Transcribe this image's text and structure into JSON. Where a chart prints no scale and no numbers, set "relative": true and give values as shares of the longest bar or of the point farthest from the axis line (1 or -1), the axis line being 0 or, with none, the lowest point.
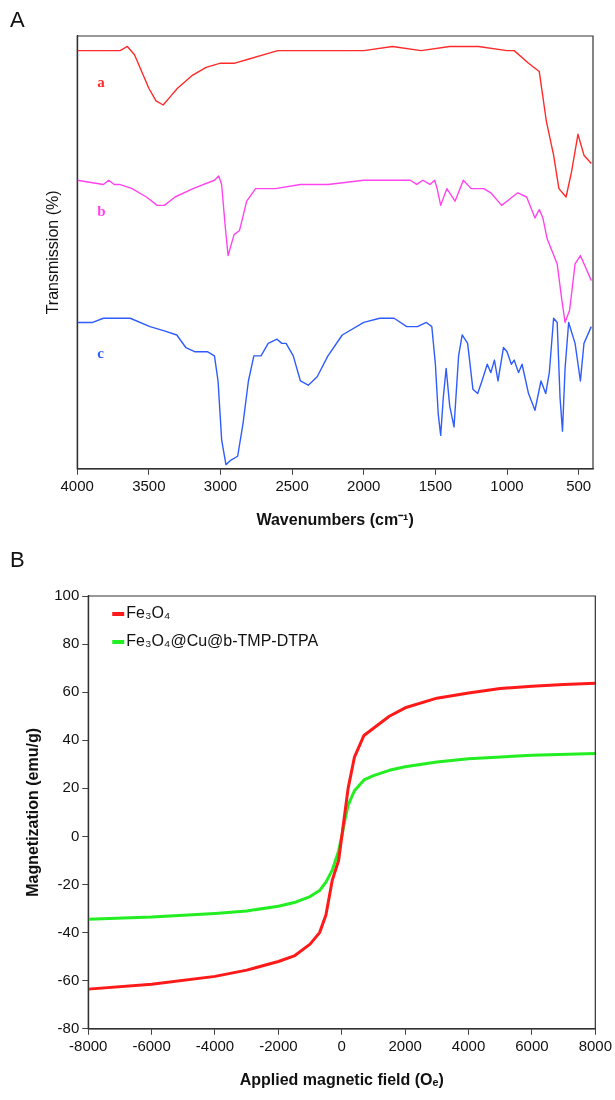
{
  "chart_data": [
    {
      "type": "line",
      "relative": true,
      "annotations": [
        "A"
      ],
      "xlabel": "Wavenumbers (cm⁻¹)",
      "ylabel": "Transmission (%)",
      "xlim": [
        4000,
        400
      ],
      "xticks": [
        4000,
        3500,
        3000,
        2500,
        2000,
        1500,
        1000,
        500
      ],
      "grid": false,
      "legend": false,
      "tick_labels": "x",
      "series": [
        {
          "name": "a",
          "color": "#ff2a2a",
          "x": [
            4000,
            3800,
            3700,
            3650,
            3600,
            3550,
            3500,
            3450,
            3400,
            3350,
            3300,
            3200,
            3100,
            3000,
            2900,
            2800,
            2600,
            2400,
            2200,
            2000,
            1800,
            1600,
            1400,
            1200,
            1000,
            950,
            850,
            775,
            725,
            675,
            638,
            588,
            550,
            505,
            463,
            412
          ],
          "values": [
            0.99,
            0.99,
            0.99,
            1.0,
            0.98,
            0.94,
            0.9,
            0.87,
            0.86,
            0.88,
            0.9,
            0.93,
            0.95,
            0.96,
            0.96,
            0.97,
            0.99,
            0.99,
            0.99,
            0.99,
            1.0,
            0.99,
            1.0,
            1.0,
            0.99,
            0.99,
            0.96,
            0.94,
            0.82,
            0.74,
            0.66,
            0.64,
            0.7,
            0.79,
            0.74,
            0.72
          ]
        },
        {
          "name": "b",
          "color": "#ff44ee",
          "x": [
            4000,
            3817,
            3780,
            3742,
            3705,
            3617,
            3517,
            3442,
            3392,
            3317,
            3192,
            3042,
            3012,
            2992,
            2967,
            2947,
            2930,
            2905,
            2867,
            2817,
            2755,
            2617,
            2442,
            2250,
            2000,
            1800,
            1675,
            1630,
            1588,
            1538,
            1505,
            1488,
            1463,
            1420,
            1363,
            1305,
            1250,
            1163,
            1113,
            1038,
            925,
            863,
            805,
            775,
            750,
            720,
            650,
            620,
            595,
            563,
            525,
            488,
            450,
            412
          ],
          "values": [
            0.68,
            0.67,
            0.68,
            0.67,
            0.67,
            0.66,
            0.64,
            0.62,
            0.62,
            0.64,
            0.66,
            0.68,
            0.69,
            0.67,
            0.57,
            0.5,
            0.52,
            0.55,
            0.56,
            0.63,
            0.66,
            0.66,
            0.67,
            0.67,
            0.68,
            0.68,
            0.68,
            0.67,
            0.68,
            0.67,
            0.68,
            0.66,
            0.62,
            0.66,
            0.63,
            0.68,
            0.66,
            0.66,
            0.65,
            0.62,
            0.65,
            0.64,
            0.59,
            0.61,
            0.59,
            0.54,
            0.48,
            0.4,
            0.34,
            0.37,
            0.48,
            0.5,
            0.47,
            0.44
          ]
        },
        {
          "name": "c",
          "color": "#2f5cff",
          "x": [
            4000,
            3892,
            3817,
            3630,
            3492,
            3392,
            3305,
            3242,
            3180,
            3092,
            3042,
            3017,
            2992,
            2962,
            2930,
            2880,
            2842,
            2805,
            2767,
            2717,
            2667,
            2605,
            2572,
            2542,
            2492,
            2442,
            2387,
            2325,
            2250,
            2150,
            2000,
            1888,
            1788,
            1700,
            1625,
            1563,
            1525,
            1500,
            1480,
            1463,
            1445,
            1425,
            1400,
            1370,
            1338,
            1313,
            1275,
            1238,
            1205,
            1175,
            1138,
            1113,
            1088,
            1063,
            1025,
            1000,
            970,
            950,
            920,
            895,
            850,
            805,
            763,
            730,
            705,
            675,
            650,
            630,
            613,
            595,
            570,
            525,
            488,
            463,
            412
          ],
          "values": [
            0.34,
            0.34,
            0.35,
            0.35,
            0.33,
            0.32,
            0.31,
            0.28,
            0.27,
            0.27,
            0.26,
            0.2,
            0.06,
            0.0,
            0.01,
            0.02,
            0.1,
            0.2,
            0.26,
            0.26,
            0.29,
            0.3,
            0.29,
            0.29,
            0.26,
            0.2,
            0.19,
            0.21,
            0.26,
            0.31,
            0.34,
            0.35,
            0.35,
            0.33,
            0.33,
            0.34,
            0.33,
            0.24,
            0.12,
            0.07,
            0.16,
            0.23,
            0.14,
            0.09,
            0.26,
            0.31,
            0.29,
            0.18,
            0.17,
            0.2,
            0.24,
            0.22,
            0.25,
            0.2,
            0.28,
            0.27,
            0.24,
            0.25,
            0.22,
            0.24,
            0.17,
            0.13,
            0.2,
            0.17,
            0.22,
            0.35,
            0.34,
            0.16,
            0.08,
            0.23,
            0.34,
            0.29,
            0.2,
            0.29,
            0.33
          ]
        }
      ]
    },
    {
      "type": "line",
      "annotations": [
        "B"
      ],
      "xlabel": "Applied magnetic field (Oₑ)",
      "ylabel": "Magnetization (emu/g)",
      "xlim": [
        -8000,
        8000
      ],
      "xticks": [
        -8000,
        -6000,
        -4000,
        -2000,
        0,
        2000,
        4000,
        6000,
        8000
      ],
      "ylim": [
        -80,
        100
      ],
      "yticks": [
        -80,
        -60,
        -40,
        -20,
        0,
        20,
        40,
        60,
        80,
        100
      ],
      "grid": false,
      "legend": "top left",
      "series": [
        {
          "name": "Fe₃O₄",
          "color": "#ff1a1a",
          "x": [
            -8000,
            -6000,
            -4000,
            -3000,
            -2000,
            -1500,
            -1000,
            -700,
            -500,
            -300,
            -100,
            0,
            100,
            200,
            400,
            700,
            1000,
            1500,
            2000,
            3000,
            4000,
            5000,
            6000,
            7000,
            8000
          ],
          "values": [
            -63.5,
            -61.5,
            -58.2,
            -55.6,
            -52,
            -49.7,
            -44.8,
            -40,
            -32.7,
            -18.2,
            -10,
            0,
            10,
            20,
            33,
            42,
            45,
            50,
            53.5,
            57.5,
            59.7,
            61.5,
            62.5,
            63.2,
            63.7
          ]
        },
        {
          "name": "Fe₃O₄@Cu@b-TMP-DTPA",
          "color": "#22ee22",
          "x": [
            -8000,
            -6000,
            -4000,
            -3000,
            -2000,
            -1500,
            -1000,
            -700,
            -500,
            -300,
            -100,
            0,
            100,
            200,
            400,
            700,
            1000,
            1500,
            2000,
            3000,
            4000,
            6000,
            8000
          ],
          "values": [
            -34.4,
            -33.5,
            -32,
            -31,
            -29,
            -27.5,
            -25,
            -22.5,
            -19,
            -14,
            -6,
            0,
            7,
            13,
            19,
            23.5,
            25.3,
            27.5,
            29,
            31,
            32.3,
            33.8,
            34.5
          ]
        }
      ]
    }
  ]
}
